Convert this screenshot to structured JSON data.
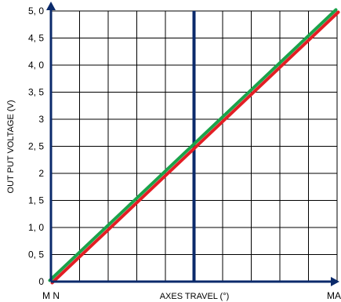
{
  "chart_data": {
    "type": "line",
    "title": "",
    "xlabel": "AXES  TRAVEL  (°)",
    "ylabel": "OUT PUT VOLTAGE  (V)",
    "x_categories": [
      "M N",
      "MAX"
    ],
    "x": [
      0,
      1
    ],
    "xlim": [
      0,
      1
    ],
    "ylim": [
      0,
      5
    ],
    "y_ticks": [
      0,
      0.5,
      1,
      1.5,
      2,
      2.5,
      3,
      3.5,
      4,
      4.5,
      5
    ],
    "y_tick_labels": [
      "0",
      "0, 5",
      "1, 0",
      "1, 5",
      "2",
      "2, 5",
      "3",
      "3, 5",
      "4, 0",
      "4, 5",
      "5, 0"
    ],
    "grid": true,
    "vertical_marker_x": 0.5,
    "series": [
      {
        "values": [
          0,
          5
        ],
        "color": "#e31e24"
      },
      {
        "values": [
          0,
          5
        ],
        "color": "#1aa34a"
      }
    ],
    "colors": {
      "axis": "#0b2a6b",
      "grid": "#000000",
      "marker": "#0b2a6b"
    }
  }
}
